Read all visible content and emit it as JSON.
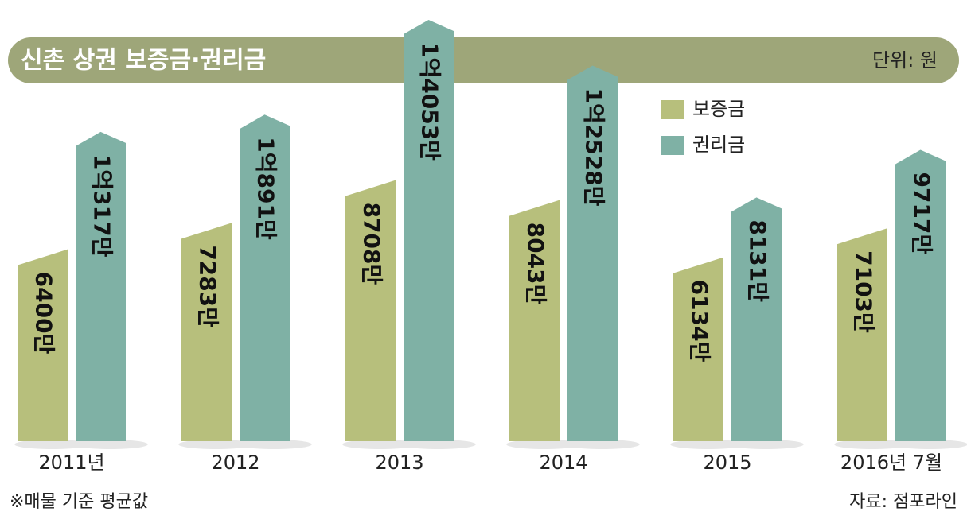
{
  "chart_data": {
    "type": "bar",
    "title": "신촌 상권 보증금·권리금",
    "unit": "단위: 원",
    "categories": [
      "2011년",
      "2012",
      "2013",
      "2014",
      "2015",
      "2016년 7월"
    ],
    "series": [
      {
        "name": "보증금",
        "color": "#b7bf7c",
        "values": [
          64000000,
          72830000,
          87080000,
          80430000,
          61340000,
          71030000
        ],
        "value_labels": [
          "6400만",
          "7283만",
          "8708만",
          "8043만",
          "6134만",
          "7103만"
        ]
      },
      {
        "name": "권리금",
        "color": "#7fb1a5",
        "values": [
          103170000,
          108910000,
          140530000,
          125280000,
          81310000,
          97170000
        ],
        "value_labels": [
          "1억317만",
          "1억891만",
          "1억4053만",
          "1억2528만",
          "8131만",
          "9717만"
        ]
      }
    ],
    "note": "※매물 기준 평균값",
    "source": "자료: 점포라인"
  }
}
